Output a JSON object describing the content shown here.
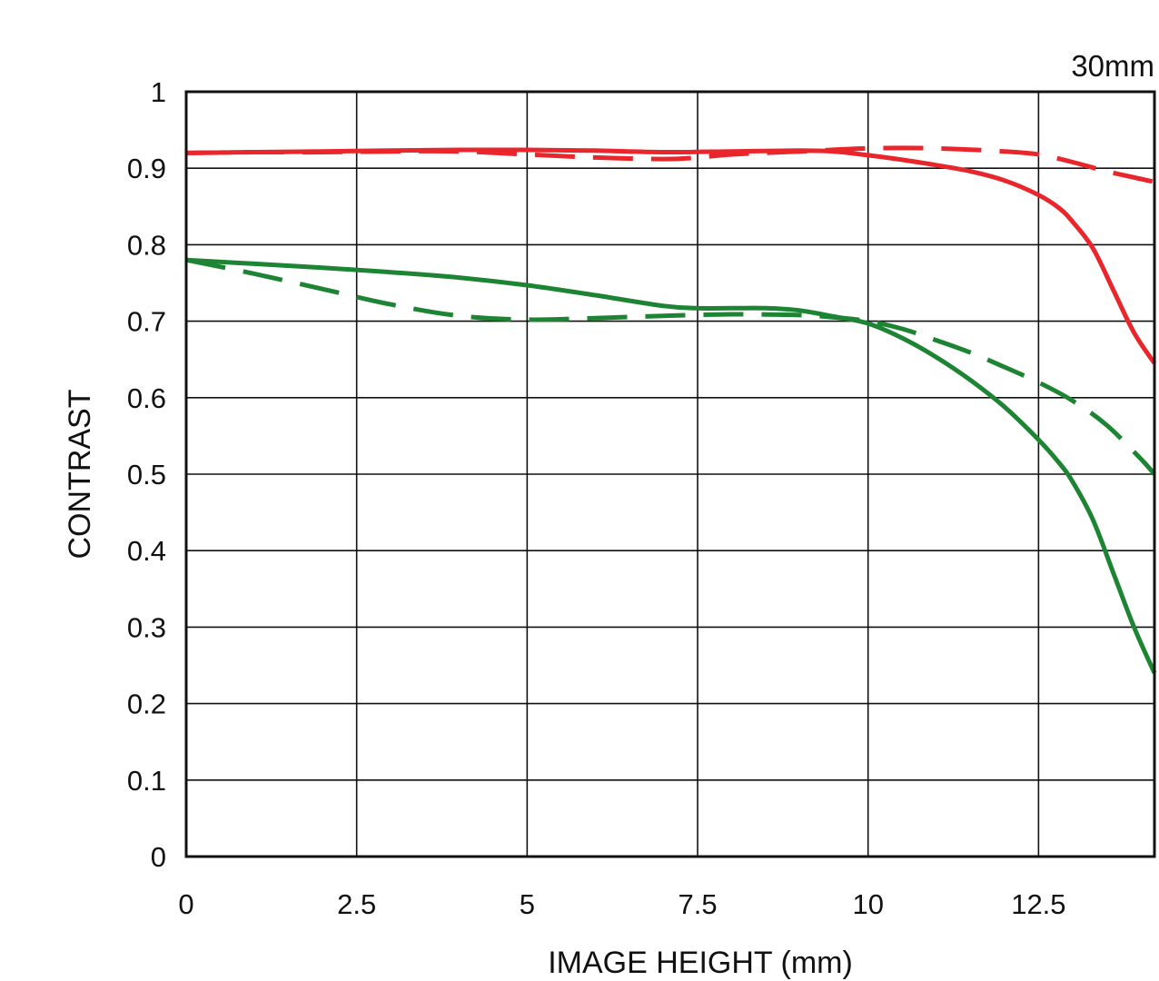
{
  "chart_data": {
    "type": "line",
    "title": "30mm",
    "xlabel": "IMAGE HEIGHT (mm)",
    "ylabel": "CONTRAST",
    "xlim": [
      0,
      14.2
    ],
    "ylim": [
      0,
      1
    ],
    "grid": true,
    "x_ticks": [
      0,
      2.5,
      5,
      7.5,
      10,
      12.5
    ],
    "x_tick_labels": [
      "0",
      "2.5",
      "5",
      "7.5",
      "10",
      "12.5"
    ],
    "y_ticks": [
      0,
      0.1,
      0.2,
      0.3,
      0.4,
      0.5,
      0.6,
      0.7,
      0.8,
      0.9,
      1
    ],
    "y_tick_labels": [
      "0",
      "0.1",
      "0.2",
      "0.3",
      "0.4",
      "0.5",
      "0.6",
      "0.7",
      "0.8",
      "0.9",
      "1"
    ],
    "series": [
      {
        "color": "#e8262b",
        "style": "solid",
        "points": [
          [
            0,
            0.92
          ],
          [
            1,
            0.921
          ],
          [
            2,
            0.922
          ],
          [
            3,
            0.923
          ],
          [
            4,
            0.924
          ],
          [
            5,
            0.924
          ],
          [
            6,
            0.923
          ],
          [
            7,
            0.921
          ],
          [
            8,
            0.922
          ],
          [
            9,
            0.923
          ],
          [
            9.5,
            0.922
          ],
          [
            10,
            0.917
          ],
          [
            10.5,
            0.911
          ],
          [
            11,
            0.904
          ],
          [
            11.5,
            0.896
          ],
          [
            12,
            0.884
          ],
          [
            12.5,
            0.865
          ],
          [
            12.8,
            0.848
          ],
          [
            13,
            0.83
          ],
          [
            13.3,
            0.795
          ],
          [
            13.6,
            0.74
          ],
          [
            13.9,
            0.685
          ],
          [
            14.2,
            0.645
          ]
        ]
      },
      {
        "color": "#e8262b",
        "style": "dashed",
        "points": [
          [
            0,
            0.92
          ],
          [
            1,
            0.921
          ],
          [
            2,
            0.921
          ],
          [
            3,
            0.922
          ],
          [
            4,
            0.922
          ],
          [
            5,
            0.918
          ],
          [
            6,
            0.914
          ],
          [
            7,
            0.912
          ],
          [
            7.5,
            0.914
          ],
          [
            8,
            0.918
          ],
          [
            9,
            0.922
          ],
          [
            10,
            0.926
          ],
          [
            11,
            0.926
          ],
          [
            12,
            0.922
          ],
          [
            12.5,
            0.918
          ],
          [
            13,
            0.908
          ],
          [
            13.5,
            0.896
          ],
          [
            14,
            0.886
          ],
          [
            14.2,
            0.882
          ]
        ]
      },
      {
        "color": "#1d8433",
        "style": "solid",
        "points": [
          [
            0,
            0.78
          ],
          [
            1,
            0.775
          ],
          [
            2,
            0.77
          ],
          [
            3,
            0.764
          ],
          [
            4,
            0.757
          ],
          [
            5,
            0.747
          ],
          [
            6,
            0.734
          ],
          [
            7,
            0.72
          ],
          [
            7.5,
            0.717
          ],
          [
            8,
            0.717
          ],
          [
            8.5,
            0.717
          ],
          [
            9,
            0.714
          ],
          [
            9.5,
            0.706
          ],
          [
            10,
            0.697
          ],
          [
            10.5,
            0.678
          ],
          [
            11,
            0.653
          ],
          [
            11.5,
            0.623
          ],
          [
            12,
            0.588
          ],
          [
            12.5,
            0.545
          ],
          [
            12.8,
            0.515
          ],
          [
            13,
            0.49
          ],
          [
            13.3,
            0.44
          ],
          [
            13.6,
            0.37
          ],
          [
            13.9,
            0.3
          ],
          [
            14.2,
            0.24
          ]
        ]
      },
      {
        "color": "#1d8433",
        "style": "dashed",
        "points": [
          [
            0,
            0.78
          ],
          [
            1,
            0.762
          ],
          [
            2,
            0.742
          ],
          [
            3,
            0.722
          ],
          [
            4,
            0.707
          ],
          [
            5,
            0.702
          ],
          [
            6,
            0.704
          ],
          [
            7,
            0.707
          ],
          [
            8,
            0.709
          ],
          [
            9,
            0.708
          ],
          [
            9.5,
            0.705
          ],
          [
            10,
            0.7
          ],
          [
            10.5,
            0.69
          ],
          [
            11,
            0.675
          ],
          [
            11.5,
            0.659
          ],
          [
            12,
            0.64
          ],
          [
            12.5,
            0.62
          ],
          [
            13,
            0.596
          ],
          [
            13.5,
            0.564
          ],
          [
            14,
            0.52
          ],
          [
            14.2,
            0.5
          ]
        ]
      }
    ]
  }
}
